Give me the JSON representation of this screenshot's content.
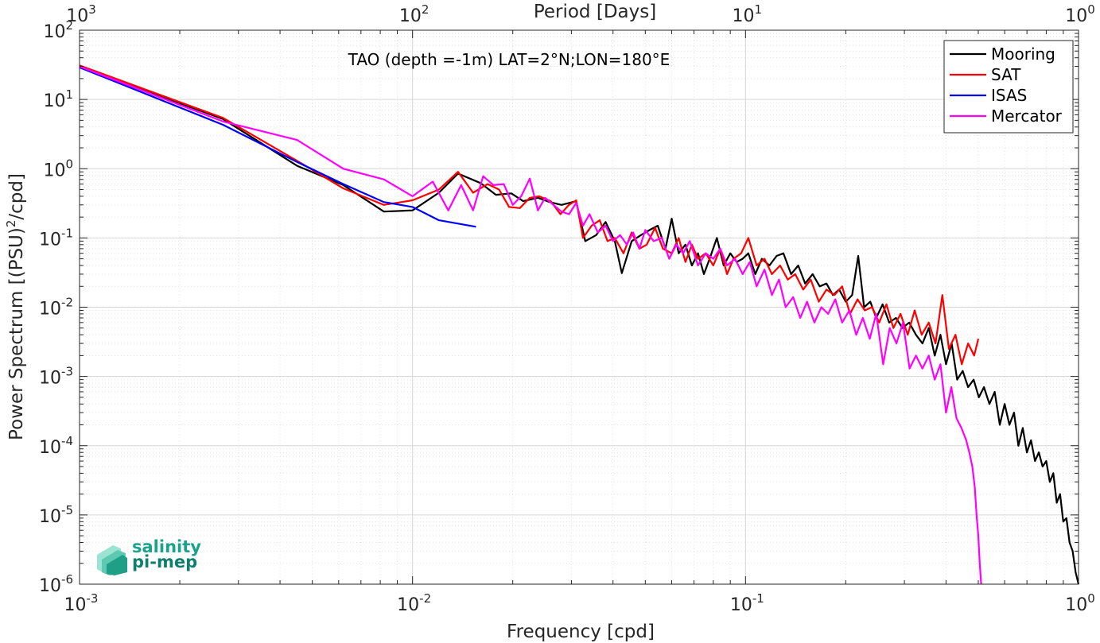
{
  "chart_data": {
    "type": "line",
    "title": "TAO (depth =-1m) LAT=2°N;LON=180°E",
    "xlabel": "Frequency [cpd]",
    "ylabel": "Power Spectrum [(PSU)^2/cpd]",
    "ylabel_parts": {
      "base": "Power Spectrum [(PSU)",
      "sup": "2",
      "tail": "/cpd]"
    },
    "x2label": "Period [Days]",
    "xscale": "log",
    "yscale": "log",
    "xlim": [
      0.001,
      1
    ],
    "ylim": [
      1e-06,
      100
    ],
    "grid": true,
    "legend_position": "top-right",
    "x_ticks": [
      {
        "value": 0.001,
        "base": "10",
        "exp": "-3"
      },
      {
        "value": 0.01,
        "base": "10",
        "exp": "-2"
      },
      {
        "value": 0.1,
        "base": "10",
        "exp": "-1"
      },
      {
        "value": 1,
        "base": "10",
        "exp": "0"
      }
    ],
    "x2_ticks": [
      {
        "value": 1000,
        "base": "10",
        "exp": "3"
      },
      {
        "value": 100,
        "base": "10",
        "exp": "2"
      },
      {
        "value": 10,
        "base": "10",
        "exp": "1"
      },
      {
        "value": 1,
        "base": "10",
        "exp": "0"
      }
    ],
    "y_ticks": [
      {
        "value": 1e-06,
        "base": "10",
        "exp": "-6"
      },
      {
        "value": 1e-05,
        "base": "10",
        "exp": "-5"
      },
      {
        "value": 0.0001,
        "base": "10",
        "exp": "-4"
      },
      {
        "value": 0.001,
        "base": "10",
        "exp": "-3"
      },
      {
        "value": 0.01,
        "base": "10",
        "exp": "-2"
      },
      {
        "value": 0.1,
        "base": "10",
        "exp": "-1"
      },
      {
        "value": 1,
        "base": "10",
        "exp": "0"
      },
      {
        "value": 10,
        "base": "10",
        "exp": "1"
      },
      {
        "value": 100,
        "base": "10",
        "exp": "2"
      }
    ],
    "series": [
      {
        "name": "Mooring",
        "color": "#000000",
        "points": [
          [
            0.001,
            30
          ],
          [
            0.0027,
            5.2
          ],
          [
            0.0045,
            1.1
          ],
          [
            0.0062,
            0.58
          ],
          [
            0.0082,
            0.24
          ],
          [
            0.01,
            0.25
          ],
          [
            0.012,
            0.45
          ],
          [
            0.0137,
            0.85
          ],
          [
            0.016,
            0.62
          ],
          [
            0.0178,
            0.42
          ],
          [
            0.0198,
            0.44
          ],
          [
            0.0215,
            0.34
          ],
          [
            0.0238,
            0.38
          ],
          [
            0.0258,
            0.33
          ],
          [
            0.028,
            0.3
          ],
          [
            0.031,
            0.34
          ],
          [
            0.033,
            0.09
          ],
          [
            0.0356,
            0.11
          ],
          [
            0.038,
            0.17
          ],
          [
            0.0405,
            0.09
          ],
          [
            0.0425,
            0.031
          ],
          [
            0.0455,
            0.09
          ],
          [
            0.0485,
            0.11
          ],
          [
            0.0515,
            0.13
          ],
          [
            0.0545,
            0.15
          ],
          [
            0.0575,
            0.07
          ],
          [
            0.06,
            0.19
          ],
          [
            0.063,
            0.06
          ],
          [
            0.066,
            0.08
          ],
          [
            0.069,
            0.04
          ],
          [
            0.072,
            0.06
          ],
          [
            0.075,
            0.03
          ],
          [
            0.078,
            0.05
          ],
          [
            0.082,
            0.1
          ],
          [
            0.086,
            0.04
          ],
          [
            0.09,
            0.06
          ],
          [
            0.094,
            0.045
          ],
          [
            0.098,
            0.05
          ],
          [
            0.102,
            0.06
          ],
          [
            0.107,
            0.03
          ],
          [
            0.112,
            0.05
          ],
          [
            0.118,
            0.04
          ],
          [
            0.124,
            0.055
          ],
          [
            0.13,
            0.06
          ],
          [
            0.137,
            0.03
          ],
          [
            0.144,
            0.04
          ],
          [
            0.151,
            0.022
          ],
          [
            0.159,
            0.03
          ],
          [
            0.167,
            0.02
          ],
          [
            0.175,
            0.022
          ],
          [
            0.183,
            0.015
          ],
          [
            0.191,
            0.018
          ],
          [
            0.2,
            0.012
          ],
          [
            0.209,
            0.015
          ],
          [
            0.218,
            0.055
          ],
          [
            0.227,
            0.01
          ],
          [
            0.237,
            0.012
          ],
          [
            0.247,
            0.007
          ],
          [
            0.258,
            0.011
          ],
          [
            0.27,
            0.006
          ],
          [
            0.283,
            0.007
          ],
          [
            0.296,
            0.005
          ],
          [
            0.31,
            0.006
          ],
          [
            0.325,
            0.004
          ],
          [
            0.34,
            0.003
          ],
          [
            0.355,
            0.005
          ],
          [
            0.37,
            0.002
          ],
          [
            0.385,
            0.004
          ],
          [
            0.4,
            0.0015
          ],
          [
            0.416,
            0.003
          ],
          [
            0.432,
            0.0009
          ],
          [
            0.449,
            0.0012
          ],
          [
            0.466,
            0.0007
          ],
          [
            0.484,
            0.0009
          ],
          [
            0.502,
            0.0005
          ],
          [
            0.52,
            0.0007
          ],
          [
            0.54,
            0.0004
          ],
          [
            0.56,
            0.0006
          ],
          [
            0.58,
            0.0002
          ],
          [
            0.6,
            0.0004
          ],
          [
            0.62,
            0.0002
          ],
          [
            0.64,
            0.0003
          ],
          [
            0.66,
            0.0001
          ],
          [
            0.68,
            0.00018
          ],
          [
            0.7,
            8e-05
          ],
          [
            0.72,
            0.00012
          ],
          [
            0.74,
            6e-05
          ],
          [
            0.76,
            8e-05
          ],
          [
            0.78,
            5e-05
          ],
          [
            0.8,
            6e-05
          ],
          [
            0.82,
            3e-05
          ],
          [
            0.84,
            4e-05
          ],
          [
            0.86,
            1.5e-05
          ],
          [
            0.88,
            2e-05
          ],
          [
            0.9,
            8e-06
          ],
          [
            0.92,
            9e-06
          ],
          [
            0.94,
            4e-06
          ],
          [
            0.96,
            3e-06
          ],
          [
            0.98,
            1.5e-06
          ],
          [
            1.0,
            1e-06
          ]
        ]
      },
      {
        "name": "SAT",
        "color": "#ff0000",
        "points": [
          [
            0.001,
            31
          ],
          [
            0.0027,
            5.4
          ],
          [
            0.0045,
            1.3
          ],
          [
            0.0062,
            0.52
          ],
          [
            0.0082,
            0.3
          ],
          [
            0.01,
            0.35
          ],
          [
            0.012,
            0.5
          ],
          [
            0.0137,
            0.9
          ],
          [
            0.0152,
            0.45
          ],
          [
            0.0168,
            0.6
          ],
          [
            0.0182,
            0.5
          ],
          [
            0.0195,
            0.28
          ],
          [
            0.021,
            0.27
          ],
          [
            0.0225,
            0.38
          ],
          [
            0.024,
            0.4
          ],
          [
            0.026,
            0.34
          ],
          [
            0.0278,
            0.22
          ],
          [
            0.0295,
            0.3
          ],
          [
            0.031,
            0.35
          ],
          [
            0.0325,
            0.1
          ],
          [
            0.0345,
            0.15
          ],
          [
            0.0365,
            0.18
          ],
          [
            0.0385,
            0.09
          ],
          [
            0.0405,
            0.1
          ],
          [
            0.043,
            0.06
          ],
          [
            0.0455,
            0.12
          ],
          [
            0.048,
            0.07
          ],
          [
            0.0505,
            0.08
          ],
          [
            0.0535,
            0.14
          ],
          [
            0.0565,
            0.07
          ],
          [
            0.06,
            0.06
          ],
          [
            0.063,
            0.1
          ],
          [
            0.066,
            0.045
          ],
          [
            0.069,
            0.08
          ],
          [
            0.072,
            0.05
          ],
          [
            0.076,
            0.06
          ],
          [
            0.08,
            0.04
          ],
          [
            0.084,
            0.07
          ],
          [
            0.088,
            0.03
          ],
          [
            0.092,
            0.05
          ],
          [
            0.097,
            0.06
          ],
          [
            0.102,
            0.1
          ],
          [
            0.108,
            0.04
          ],
          [
            0.114,
            0.05
          ],
          [
            0.12,
            0.03
          ],
          [
            0.127,
            0.04
          ],
          [
            0.134,
            0.025
          ],
          [
            0.141,
            0.03
          ],
          [
            0.149,
            0.018
          ],
          [
            0.157,
            0.025
          ],
          [
            0.166,
            0.012
          ],
          [
            0.175,
            0.018
          ],
          [
            0.185,
            0.015
          ],
          [
            0.195,
            0.02
          ],
          [
            0.206,
            0.008
          ],
          [
            0.217,
            0.013
          ],
          [
            0.228,
            0.009
          ],
          [
            0.24,
            0.01
          ],
          [
            0.252,
            0.006
          ],
          [
            0.265,
            0.011
          ],
          [
            0.278,
            0.005
          ],
          [
            0.292,
            0.008
          ],
          [
            0.307,
            0.004
          ],
          [
            0.322,
            0.009
          ],
          [
            0.338,
            0.004
          ],
          [
            0.355,
            0.006
          ],
          [
            0.372,
            0.003
          ],
          [
            0.39,
            0.015
          ],
          [
            0.408,
            0.0025
          ],
          [
            0.427,
            0.004
          ],
          [
            0.446,
            0.0015
          ],
          [
            0.466,
            0.003
          ],
          [
            0.486,
            0.002
          ],
          [
            0.5,
            0.0035
          ]
        ]
      },
      {
        "name": "ISAS",
        "color": "#0000ff",
        "points": [
          [
            0.001,
            29
          ],
          [
            0.0027,
            4.3
          ],
          [
            0.0045,
            1.25
          ],
          [
            0.0062,
            0.6
          ],
          [
            0.0082,
            0.33
          ],
          [
            0.01,
            0.28
          ],
          [
            0.012,
            0.18
          ],
          [
            0.0155,
            0.145
          ]
        ]
      },
      {
        "name": "Mercator",
        "color": "#ff00ff",
        "points": [
          [
            0.001,
            30
          ],
          [
            0.0027,
            4.8
          ],
          [
            0.0045,
            2.6
          ],
          [
            0.0062,
            1.0
          ],
          [
            0.0082,
            0.7
          ],
          [
            0.01,
            0.4
          ],
          [
            0.0115,
            0.65
          ],
          [
            0.0128,
            0.25
          ],
          [
            0.014,
            0.58
          ],
          [
            0.0152,
            0.25
          ],
          [
            0.0163,
            0.78
          ],
          [
            0.0175,
            0.58
          ],
          [
            0.0188,
            0.6
          ],
          [
            0.02,
            0.3
          ],
          [
            0.0212,
            0.4
          ],
          [
            0.0225,
            0.72
          ],
          [
            0.0238,
            0.25
          ],
          [
            0.025,
            0.38
          ],
          [
            0.0265,
            0.3
          ],
          [
            0.028,
            0.24
          ],
          [
            0.0295,
            0.22
          ],
          [
            0.031,
            0.32
          ],
          [
            0.0325,
            0.15
          ],
          [
            0.034,
            0.22
          ],
          [
            0.036,
            0.12
          ],
          [
            0.038,
            0.15
          ],
          [
            0.04,
            0.09
          ],
          [
            0.042,
            0.11
          ],
          [
            0.044,
            0.08
          ],
          [
            0.046,
            0.12
          ],
          [
            0.048,
            0.07
          ],
          [
            0.05,
            0.13
          ],
          [
            0.053,
            0.09
          ],
          [
            0.056,
            0.1
          ],
          [
            0.059,
            0.05
          ],
          [
            0.062,
            0.08
          ],
          [
            0.065,
            0.06
          ],
          [
            0.068,
            0.09
          ],
          [
            0.072,
            0.04
          ],
          [
            0.076,
            0.06
          ],
          [
            0.08,
            0.05
          ],
          [
            0.084,
            0.07
          ],
          [
            0.088,
            0.04
          ],
          [
            0.093,
            0.05
          ],
          [
            0.098,
            0.03
          ],
          [
            0.103,
            0.045
          ],
          [
            0.108,
            0.02
          ],
          [
            0.114,
            0.035
          ],
          [
            0.12,
            0.015
          ],
          [
            0.126,
            0.025
          ],
          [
            0.132,
            0.01
          ],
          [
            0.139,
            0.014
          ],
          [
            0.146,
            0.007
          ],
          [
            0.153,
            0.012
          ],
          [
            0.161,
            0.006
          ],
          [
            0.169,
            0.01
          ],
          [
            0.177,
            0.008
          ],
          [
            0.186,
            0.013
          ],
          [
            0.195,
            0.006
          ],
          [
            0.205,
            0.009
          ],
          [
            0.215,
            0.004
          ],
          [
            0.225,
            0.007
          ],
          [
            0.236,
            0.0035
          ],
          [
            0.247,
            0.008
          ],
          [
            0.259,
            0.0015
          ],
          [
            0.271,
            0.005
          ],
          [
            0.284,
            0.003
          ],
          [
            0.297,
            0.006
          ],
          [
            0.311,
            0.0013
          ],
          [
            0.325,
            0.002
          ],
          [
            0.34,
            0.0013
          ],
          [
            0.355,
            0.002
          ],
          [
            0.37,
            0.0009
          ],
          [
            0.385,
            0.0015
          ],
          [
            0.4,
            0.0003
          ],
          [
            0.415,
            0.0007
          ],
          [
            0.43,
            0.00025
          ],
          [
            0.445,
            0.00018
          ],
          [
            0.46,
            0.00012
          ],
          [
            0.47,
            8e-05
          ],
          [
            0.48,
            5e-05
          ],
          [
            0.488,
            2.5e-05
          ],
          [
            0.494,
            1e-05
          ],
          [
            0.5,
            5e-06
          ],
          [
            0.505,
            2e-06
          ],
          [
            0.51,
            1e-06
          ]
        ]
      }
    ]
  },
  "logo": {
    "line1": "salinity",
    "line2": "pi-mep"
  }
}
